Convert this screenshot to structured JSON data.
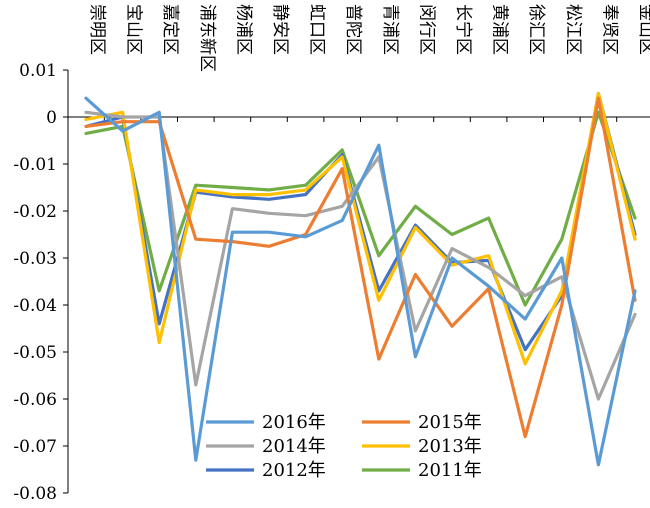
{
  "chart_data": {
    "type": "line",
    "categories": [
      "崇明区",
      "宝山区",
      "嘉定区",
      "浦东新区",
      "杨浦区",
      "静安区",
      "虹口区",
      "普陀区",
      "青浦区",
      "闵行区",
      "长宁区",
      "黄浦区",
      "徐汇区",
      "松江区",
      "奉贤区",
      "金山区"
    ],
    "ylim": [
      -0.08,
      0.01
    ],
    "yticks": [
      0.01,
      0,
      -0.01,
      -0.02,
      -0.03,
      -0.04,
      -0.05,
      -0.06,
      -0.07,
      -0.08
    ],
    "ytick_labels": [
      "0.01",
      "0",
      "-0.01",
      "-0.02",
      "-0.03",
      "-0.04",
      "-0.05",
      "-0.06",
      "-0.07",
      "-0.08"
    ],
    "grid": false,
    "legend_position": "bottom-center",
    "series": [
      {
        "name": "2016年",
        "color": "#5B9BD5",
        "values": [
          0.004,
          -0.003,
          0.001,
          -0.073,
          -0.0245,
          -0.0245,
          -0.0255,
          -0.022,
          -0.006,
          -0.051,
          -0.03,
          -0.036,
          -0.043,
          -0.03,
          -0.074,
          -0.037
        ]
      },
      {
        "name": "2015年",
        "color": "#ED7D31",
        "values": [
          -0.002,
          -0.001,
          -0.001,
          -0.026,
          -0.0265,
          -0.0275,
          -0.025,
          -0.011,
          -0.0515,
          -0.0335,
          -0.0445,
          -0.0365,
          -0.068,
          -0.04,
          0.004,
          -0.039
        ]
      },
      {
        "name": "2014年",
        "color": "#A5A5A5",
        "values": [
          0.001,
          0.0,
          0.0,
          -0.057,
          -0.0195,
          -0.0205,
          -0.021,
          -0.019,
          -0.0085,
          -0.0455,
          -0.028,
          -0.032,
          -0.038,
          -0.034,
          -0.06,
          -0.042
        ]
      },
      {
        "name": "2013年",
        "color": "#FFC000",
        "values": [
          -0.0005,
          0.001,
          -0.048,
          -0.0155,
          -0.0165,
          -0.0165,
          -0.0155,
          -0.0085,
          -0.039,
          -0.0235,
          -0.0315,
          -0.0295,
          -0.0525,
          -0.037,
          0.005,
          -0.026
        ]
      },
      {
        "name": "2012年",
        "color": "#4472C4",
        "values": [
          -0.002,
          0.0,
          -0.044,
          -0.016,
          -0.017,
          -0.0175,
          -0.0165,
          -0.008,
          -0.037,
          -0.023,
          -0.031,
          -0.0305,
          -0.0495,
          -0.038,
          0.005,
          -0.025
        ]
      },
      {
        "name": "2011年",
        "color": "#70AD47",
        "values": [
          -0.0035,
          -0.002,
          -0.037,
          -0.0145,
          -0.015,
          -0.0155,
          -0.0145,
          -0.007,
          -0.0295,
          -0.019,
          -0.025,
          -0.0215,
          -0.04,
          -0.026,
          0.001,
          -0.0215
        ]
      }
    ]
  }
}
